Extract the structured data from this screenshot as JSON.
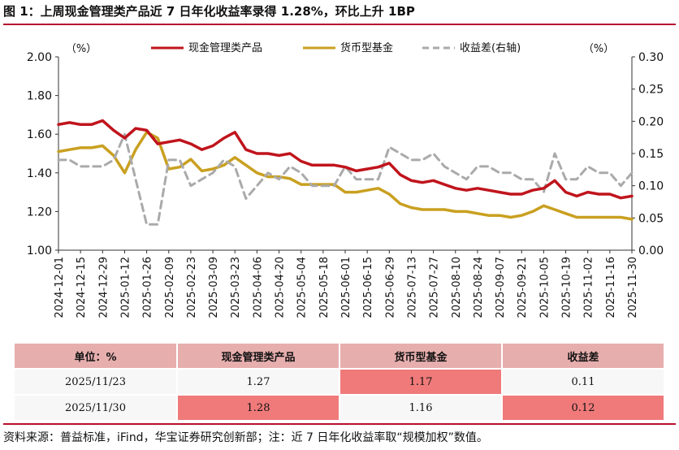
{
  "figure": {
    "title": "图 1：上周现金管理类产品近 7 日年化收益率录得 1.28%，环比上升 1BP",
    "source": "资料来源：普益标准，iFind，华宝证券研究创新部；注：近 7 日年化收益率取“规模加权”数值。"
  },
  "chart_data": {
    "type": "line",
    "left_unit": "（%）",
    "right_unit": "（%）",
    "ylim_left": [
      1.0,
      2.0
    ],
    "ylim_right": [
      0.0,
      0.3
    ],
    "yticks_left": [
      "2.00",
      "1.80",
      "1.60",
      "1.40",
      "1.20",
      "1.00"
    ],
    "yticks_right": [
      "0.30",
      "0.25",
      "0.20",
      "0.15",
      "0.10",
      "0.05",
      "0.00"
    ],
    "x_ticks": [
      "2024-12-01",
      "2024-12-15",
      "2024-12-29",
      "2025-01-12",
      "2025-01-26",
      "2025-02-09",
      "2025-02-23",
      "2025-03-09",
      "2025-03-23",
      "2025-04-06",
      "2025-04-20",
      "2025-05-04",
      "2025-05-18",
      "2025-06-01",
      "2025-06-15",
      "2025-06-29",
      "2025-07-13",
      "2025-07-27",
      "2025-08-10",
      "2025-08-24",
      "2025-09-07",
      "2025-09-21",
      "2025-10-05",
      "2025-10-19",
      "2025-11-02",
      "2025-11-16",
      "2025-11-30"
    ],
    "x_count": 53,
    "grid": false,
    "legend_position": "top",
    "series": [
      {
        "name": "现金管理类产品",
        "axis": "left",
        "style": "solid",
        "color": "#c0141c",
        "values": [
          1.65,
          1.66,
          1.65,
          1.65,
          1.67,
          1.62,
          1.58,
          1.63,
          1.62,
          1.55,
          1.56,
          1.57,
          1.55,
          1.52,
          1.54,
          1.58,
          1.61,
          1.52,
          1.5,
          1.5,
          1.49,
          1.5,
          1.46,
          1.44,
          1.44,
          1.44,
          1.43,
          1.41,
          1.42,
          1.43,
          1.45,
          1.39,
          1.36,
          1.35,
          1.36,
          1.34,
          1.32,
          1.31,
          1.32,
          1.31,
          1.3,
          1.29,
          1.29,
          1.31,
          1.32,
          1.36,
          1.3,
          1.28,
          1.3,
          1.29,
          1.29,
          1.27,
          1.28
        ]
      },
      {
        "name": "货币型基金",
        "axis": "left",
        "style": "solid",
        "color": "#c9a020",
        "values": [
          1.51,
          1.52,
          1.53,
          1.53,
          1.54,
          1.49,
          1.4,
          1.52,
          1.61,
          1.58,
          1.42,
          1.43,
          1.47,
          1.41,
          1.42,
          1.44,
          1.48,
          1.44,
          1.4,
          1.38,
          1.38,
          1.37,
          1.34,
          1.34,
          1.34,
          1.34,
          1.3,
          1.3,
          1.31,
          1.32,
          1.29,
          1.24,
          1.22,
          1.21,
          1.21,
          1.21,
          1.2,
          1.2,
          1.19,
          1.18,
          1.18,
          1.17,
          1.18,
          1.2,
          1.23,
          1.21,
          1.19,
          1.17,
          1.17,
          1.17,
          1.17,
          1.17,
          1.16
        ]
      },
      {
        "name": "收益差(右轴)",
        "axis": "right",
        "style": "dashed",
        "color": "#aaaaaa",
        "values": [
          0.14,
          0.14,
          0.13,
          0.13,
          0.13,
          0.14,
          0.18,
          0.11,
          0.04,
          0.04,
          0.14,
          0.14,
          0.1,
          0.11,
          0.12,
          0.14,
          0.13,
          0.08,
          0.1,
          0.12,
          0.11,
          0.13,
          0.12,
          0.1,
          0.1,
          0.1,
          0.13,
          0.11,
          0.11,
          0.11,
          0.16,
          0.15,
          0.14,
          0.14,
          0.15,
          0.13,
          0.12,
          0.11,
          0.13,
          0.13,
          0.12,
          0.12,
          0.11,
          0.11,
          0.09,
          0.15,
          0.11,
          0.11,
          0.13,
          0.12,
          0.12,
          0.1,
          0.12
        ]
      }
    ]
  },
  "table": {
    "headers": [
      "单位：%",
      "现金管理类产品",
      "货币型基金",
      "收益差"
    ],
    "rows": [
      {
        "cells": [
          "2025/11/23",
          "1.27",
          "1.17",
          "0.11"
        ],
        "highlight": [
          false,
          false,
          true,
          false
        ]
      },
      {
        "cells": [
          "2025/11/30",
          "1.28",
          "1.16",
          "0.12"
        ],
        "highlight": [
          false,
          true,
          false,
          true
        ]
      }
    ]
  }
}
